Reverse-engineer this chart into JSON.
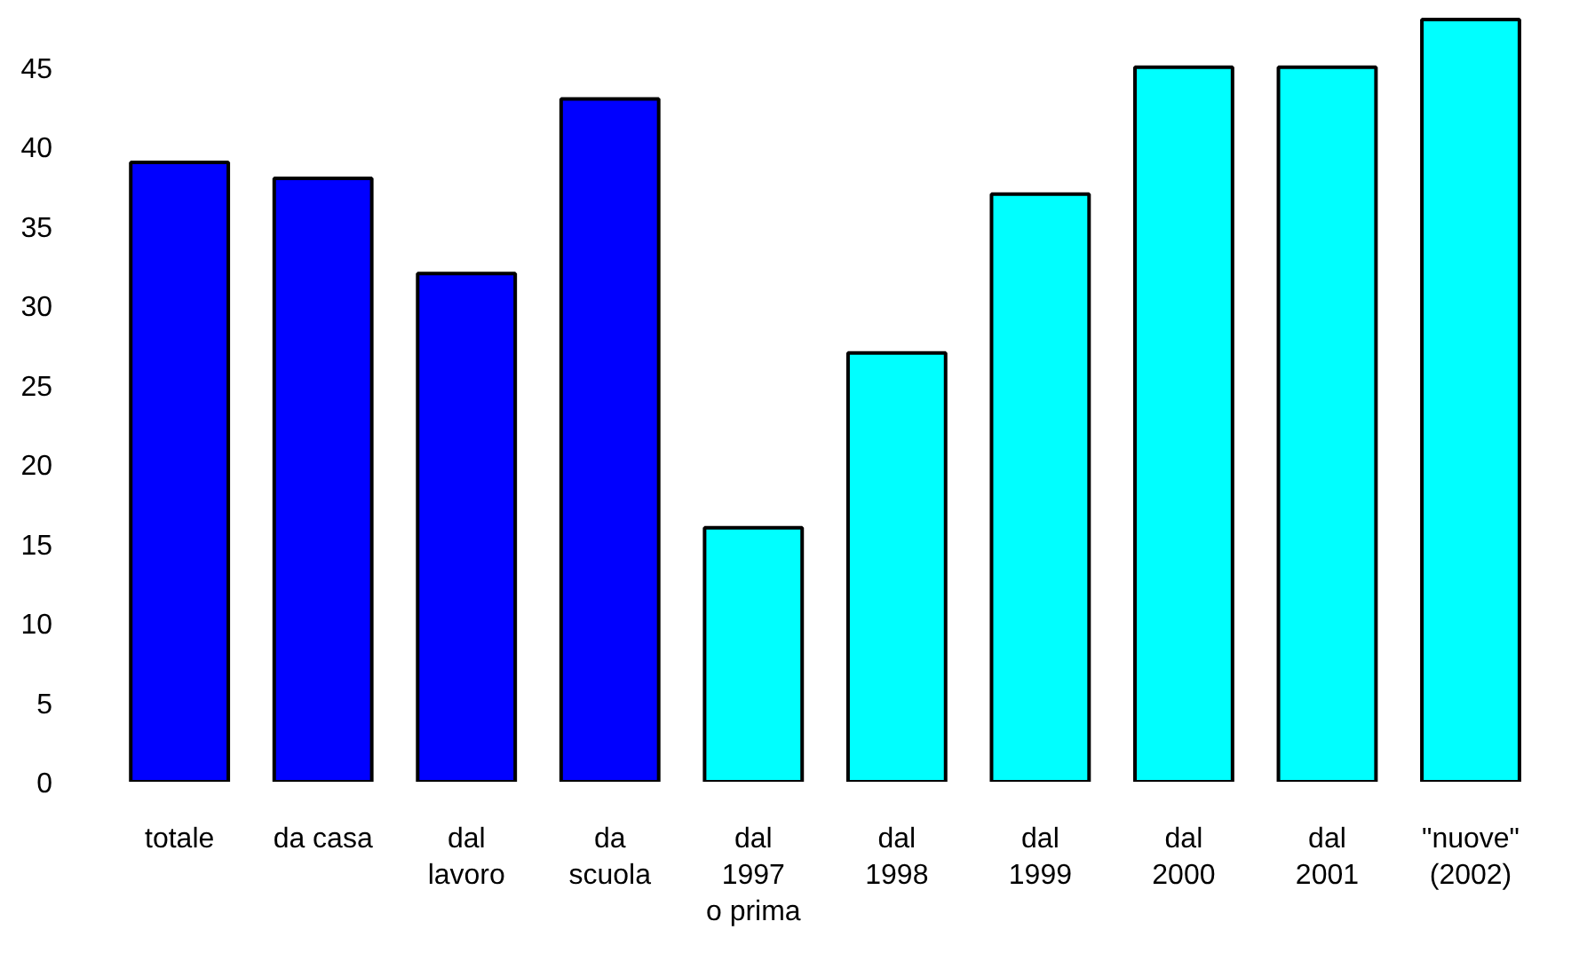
{
  "chart_data": {
    "type": "bar",
    "categories": [
      "totale",
      "da casa",
      "dal\nlavoro",
      "da\nscuola",
      "dal\n1997\no prima",
      "dal\n1998",
      "dal\n1999",
      "dal\n2000",
      "dal\n2001",
      "\"nuove\"\n(2002)"
    ],
    "values": [
      39,
      38,
      32,
      43,
      16,
      27,
      37,
      45,
      45,
      48
    ],
    "colors": [
      "#0000ff",
      "#0000ff",
      "#0000ff",
      "#0000ff",
      "#00ffff",
      "#00ffff",
      "#00ffff",
      "#00ffff",
      "#00ffff",
      "#00ffff"
    ],
    "ylim": [
      0,
      48.5
    ],
    "yticks": [
      0,
      5,
      10,
      15,
      20,
      25,
      30,
      35,
      40,
      45
    ],
    "grid": false
  }
}
